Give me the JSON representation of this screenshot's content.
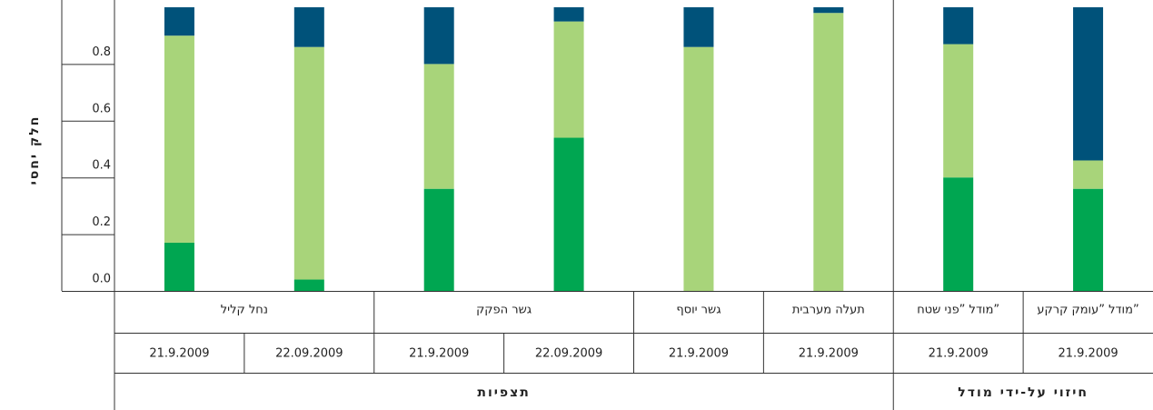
{
  "chart_data": {
    "type": "bar",
    "stacked": true,
    "ylabel": "חלק יחסי",
    "ylim": [
      0,
      1
    ],
    "yticks": [
      {
        "value": 0,
        "label": "0.0"
      },
      0.2,
      0.4,
      0.6,
      0.8
    ],
    "categories": [
      "21.9.2009",
      "22.09.2009",
      "21.9.2009",
      "22.09.2009",
      "21.9.2009",
      "21.9.2009",
      "21.9.2009",
      "21.9.2009"
    ],
    "series": [
      {
        "color": "#00a651",
        "values": [
          0.17,
          0.04,
          0.36,
          0.54,
          0,
          0,
          0.4,
          0.36
        ]
      },
      {
        "color": "#a8d47a",
        "values": [
          0.73,
          0.82,
          0.44,
          0.41,
          0.86,
          0.98,
          0.47,
          0.1
        ]
      },
      {
        "color": "#00527a",
        "values": [
          0.1,
          0.14,
          0.2,
          0.05,
          0.14,
          0.02,
          0.13,
          0.54
        ]
      }
    ],
    "groups": [
      {
        "label": "נחל קליל",
        "span": 2
      },
      {
        "label": "גשר הפקק",
        "span": 2
      },
      {
        "label": "גשר יוסף",
        "span": 1
      },
      {
        "label": "תעלה מערבית",
        "span": 1
      },
      {
        "label": "מודל ”פני שטח”",
        "span": 1
      },
      {
        "label": "מודל ”עומק קרקע”",
        "span": 1
      }
    ],
    "sections": [
      {
        "label": "תצפיות",
        "span": 6
      },
      {
        "label": "חיזוי על-ידי מודל",
        "span": 2
      }
    ]
  }
}
